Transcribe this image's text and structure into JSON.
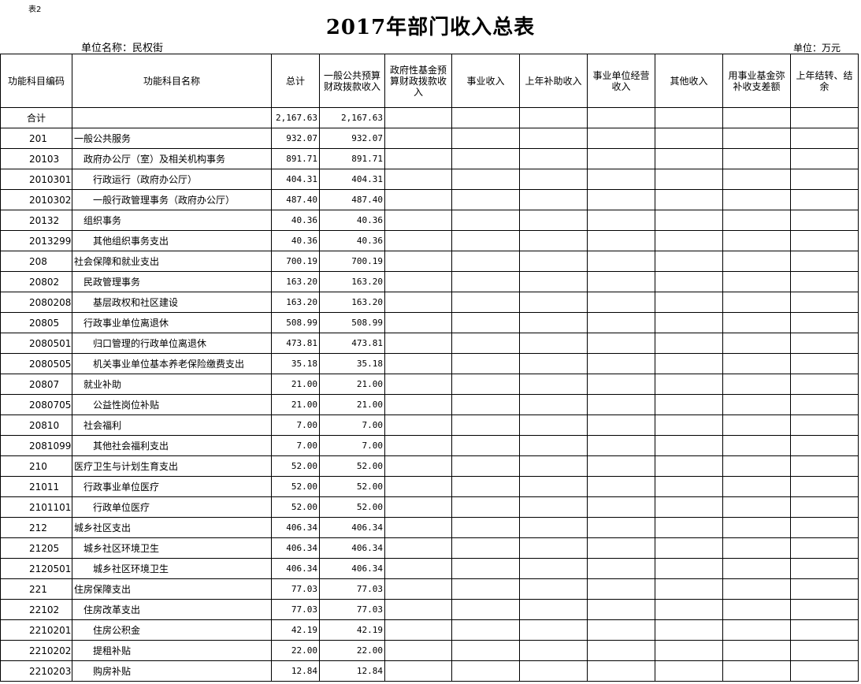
{
  "tag": "表2",
  "title": "2017年部门收入总表",
  "unit_name": "单位名称：民权街",
  "unit": "单位：万元",
  "columns": [
    "功能科目编码",
    "功能科目名称",
    "总计",
    "一般公共预算财政拨款收入",
    "政府性基金预算财政拨款收入",
    "事业收入",
    "上年补助收入",
    "事业单位经营收入",
    "其他收入",
    "用事业基金弥补收支差额",
    "上年结转、结余"
  ],
  "rows": [
    {
      "code": "合计",
      "name": "",
      "level": 0,
      "total": "2,167.63",
      "general": "2,167.63"
    },
    {
      "code": "201",
      "name": "一般公共服务",
      "level": 1,
      "total": "932.07",
      "general": "932.07"
    },
    {
      "code": "20103",
      "name": "政府办公厅（室）及相关机构事务",
      "level": 2,
      "total": "891.71",
      "general": "891.71"
    },
    {
      "code": "2010301",
      "name": "行政运行（政府办公厅）",
      "level": 3,
      "total": "404.31",
      "general": "404.31"
    },
    {
      "code": "2010302",
      "name": "一般行政管理事务（政府办公厅）",
      "level": 3,
      "total": "487.40",
      "general": "487.40"
    },
    {
      "code": "20132",
      "name": "组织事务",
      "level": 2,
      "total": "40.36",
      "general": "40.36"
    },
    {
      "code": "2013299",
      "name": "其他组织事务支出",
      "level": 3,
      "total": "40.36",
      "general": "40.36"
    },
    {
      "code": "208",
      "name": "社会保障和就业支出",
      "level": 1,
      "total": "700.19",
      "general": "700.19"
    },
    {
      "code": "20802",
      "name": "民政管理事务",
      "level": 2,
      "total": "163.20",
      "general": "163.20"
    },
    {
      "code": "2080208",
      "name": "基层政权和社区建设",
      "level": 3,
      "total": "163.20",
      "general": "163.20"
    },
    {
      "code": "20805",
      "name": "行政事业单位离退休",
      "level": 2,
      "total": "508.99",
      "general": "508.99"
    },
    {
      "code": "2080501",
      "name": "归口管理的行政单位离退休",
      "level": 3,
      "total": "473.81",
      "general": "473.81"
    },
    {
      "code": "2080505",
      "name": "机关事业单位基本养老保险缴费支出",
      "level": 3,
      "total": "35.18",
      "general": "35.18"
    },
    {
      "code": "20807",
      "name": "就业补助",
      "level": 2,
      "total": "21.00",
      "general": "21.00"
    },
    {
      "code": "2080705",
      "name": "公益性岗位补贴",
      "level": 3,
      "total": "21.00",
      "general": "21.00"
    },
    {
      "code": "20810",
      "name": "社会福利",
      "level": 2,
      "total": "7.00",
      "general": "7.00"
    },
    {
      "code": "2081099",
      "name": "其他社会福利支出",
      "level": 3,
      "total": "7.00",
      "general": "7.00"
    },
    {
      "code": "210",
      "name": "医疗卫生与计划生育支出",
      "level": 1,
      "total": "52.00",
      "general": "52.00"
    },
    {
      "code": "21011",
      "name": "行政事业单位医疗",
      "level": 2,
      "total": "52.00",
      "general": "52.00"
    },
    {
      "code": "2101101",
      "name": "行政单位医疗",
      "level": 3,
      "total": "52.00",
      "general": "52.00"
    },
    {
      "code": "212",
      "name": "城乡社区支出",
      "level": 1,
      "total": "406.34",
      "general": "406.34"
    },
    {
      "code": "21205",
      "name": "城乡社区环境卫生",
      "level": 2,
      "total": "406.34",
      "general": "406.34"
    },
    {
      "code": "2120501",
      "name": "城乡社区环境卫生",
      "level": 3,
      "total": "406.34",
      "general": "406.34"
    },
    {
      "code": "221",
      "name": "住房保障支出",
      "level": 1,
      "total": "77.03",
      "general": "77.03"
    },
    {
      "code": "22102",
      "name": "住房改革支出",
      "level": 2,
      "total": "77.03",
      "general": "77.03"
    },
    {
      "code": "2210201",
      "name": "住房公积金",
      "level": 3,
      "total": "42.19",
      "general": "42.19"
    },
    {
      "code": "2210202",
      "name": "提租补贴",
      "level": 3,
      "total": "22.00",
      "general": "22.00"
    },
    {
      "code": "2210203",
      "name": "购房补贴",
      "level": 3,
      "total": "12.84",
      "general": "12.84"
    }
  ]
}
